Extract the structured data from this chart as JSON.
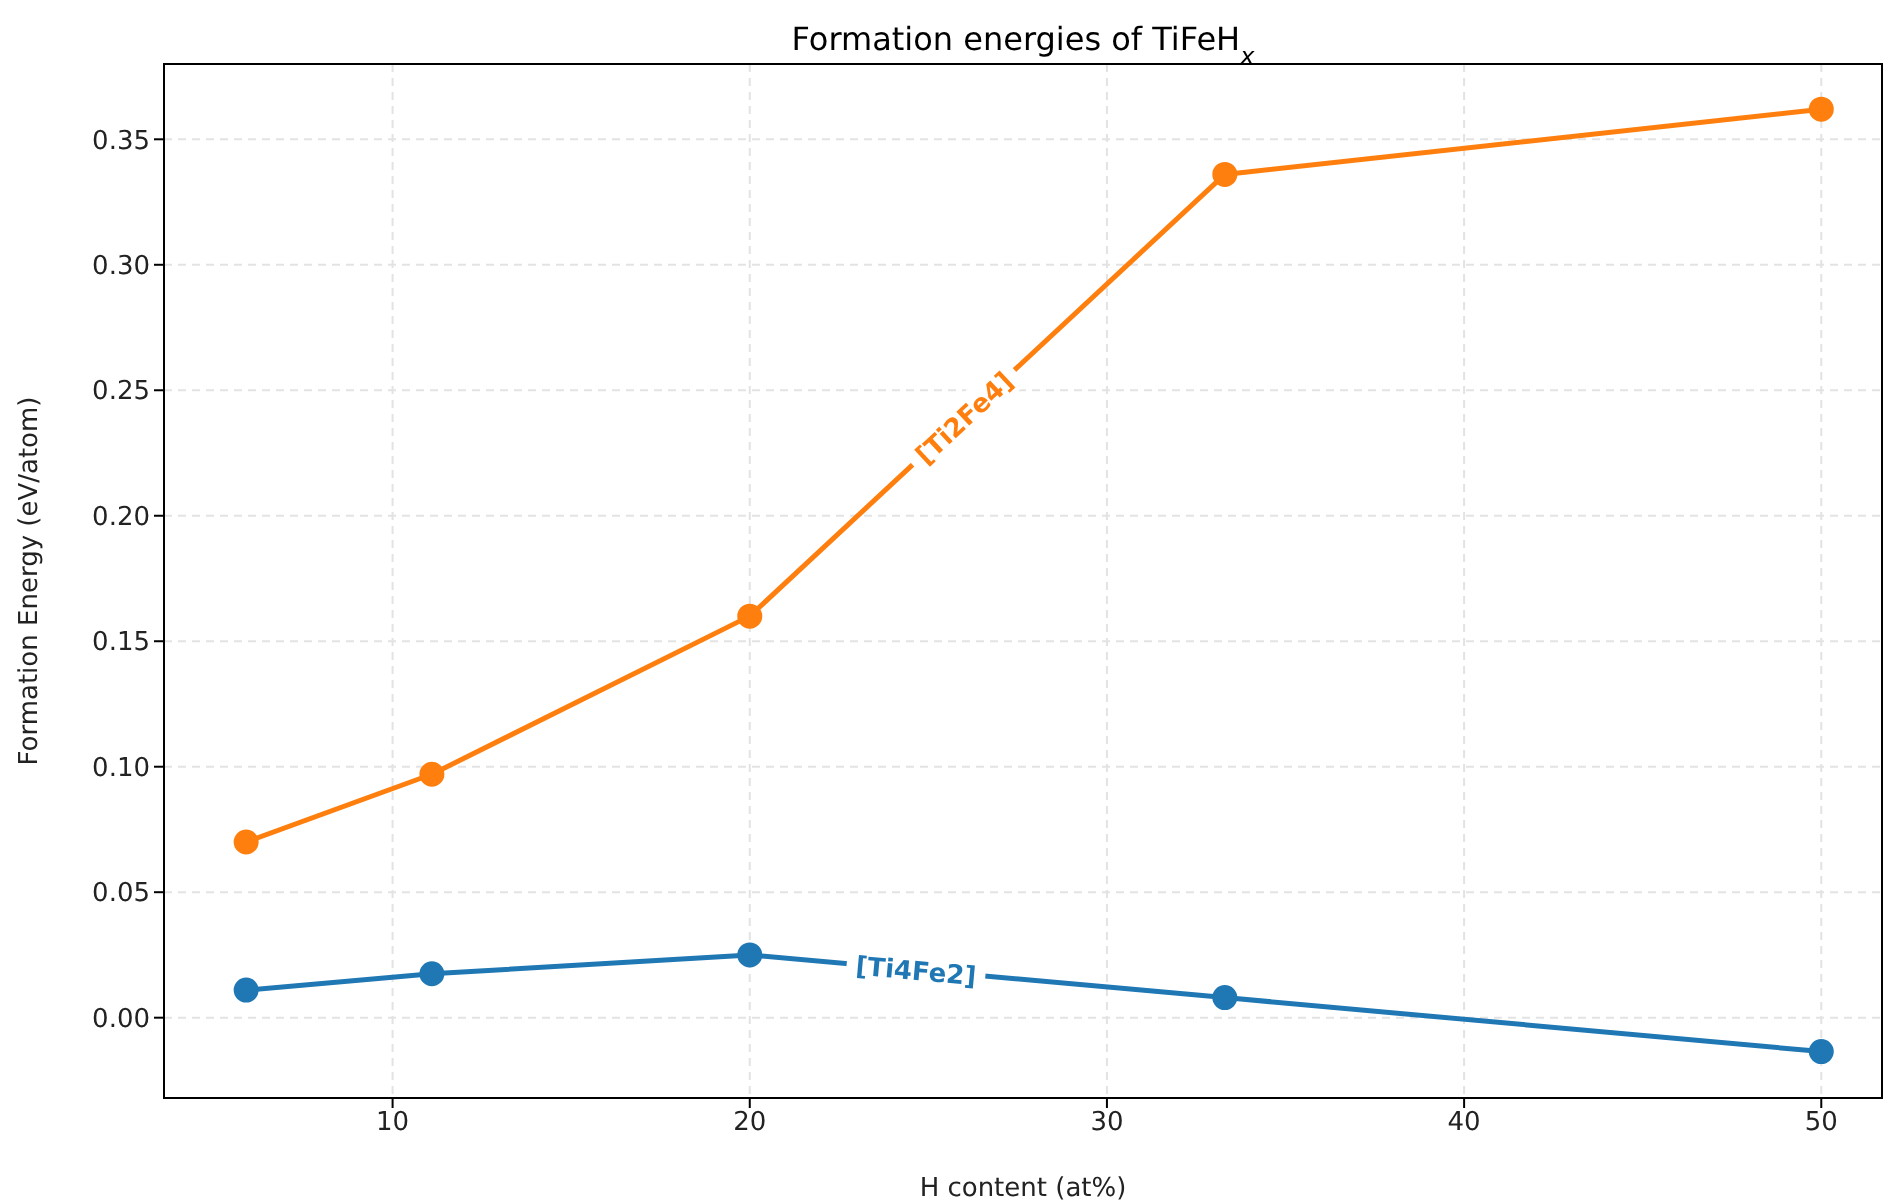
{
  "chart_data": {
    "type": "line",
    "title": "Formation energies of TiFeH$_{x}$",
    "xlabel": "H content (at%)",
    "ylabel": "Formation Energy (eV/atom)",
    "x": [
      5.9,
      11.1,
      20,
      33.3,
      50
    ],
    "series": [
      {
        "name": "[Ti4Fe2]",
        "color": "#1f77b4",
        "values": [
          0.011,
          0.0175,
          0.025,
          0.008,
          -0.0135
        ]
      },
      {
        "name": "[Ti2Fe4]",
        "color": "#ff7f0e",
        "values": [
          0.07,
          0.097,
          0.16,
          0.336,
          0.362
        ]
      }
    ],
    "xlim": [
      3.6,
      51.7
    ],
    "xticks": [
      10,
      20,
      30,
      40,
      50
    ],
    "ylim": [
      -0.032,
      0.38
    ],
    "yticks": [
      {
        "value": 0,
        "label": "0.00"
      },
      0.05,
      {
        "value": 0.1,
        "label": "0.10"
      },
      0.15,
      {
        "value": 0.2,
        "label": "0.20"
      },
      0.25,
      {
        "value": 0.3,
        "label": "0.30"
      },
      0.35
    ],
    "grid": true,
    "marker": "circle",
    "line_style": "solid"
  }
}
